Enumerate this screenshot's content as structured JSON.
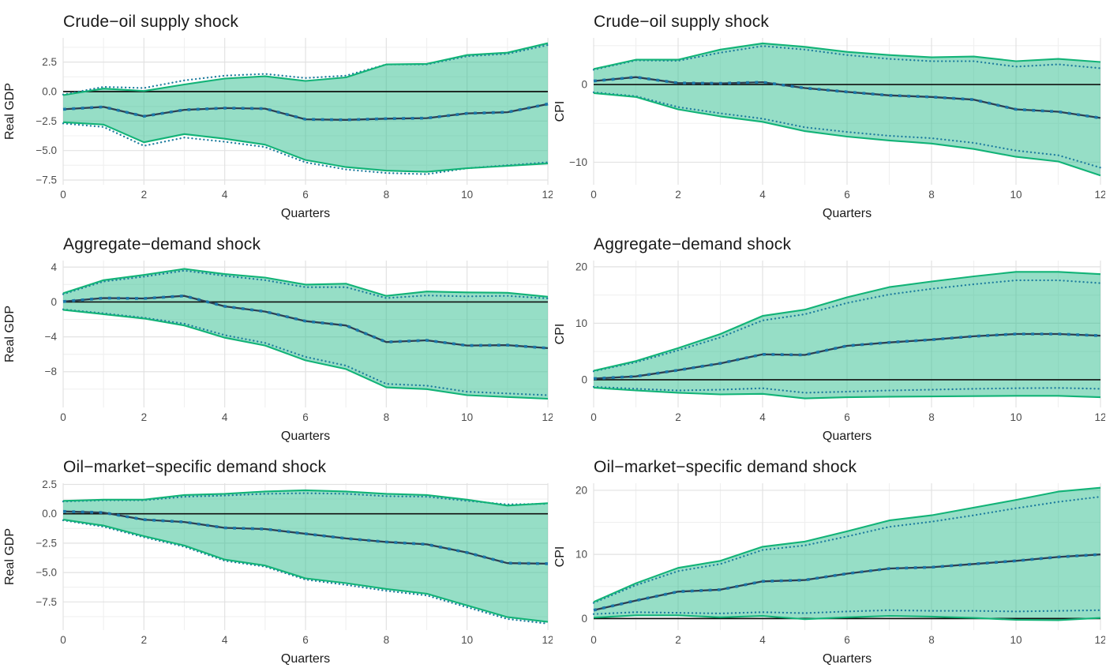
{
  "colors": {
    "band_fill": "#2ebe8e",
    "band_edge": "#12b377",
    "dotted_line": "#1f7d9f",
    "median_line": "#2c3f52",
    "median_marker": "#1878aa",
    "zero_line": "#101010",
    "grid_major": "#e2e2e2",
    "grid_minor": "#f0f0f0",
    "tick_text": "#4d4d4d",
    "label_text": "#1a1a1a"
  },
  "chart_data": [
    {
      "type": "line",
      "title": "Crude−oil supply shock",
      "xlabel": "Quarters",
      "ylabel": "Real GDP",
      "x": [
        0,
        1,
        2,
        3,
        4,
        5,
        6,
        7,
        8,
        9,
        10,
        11,
        12
      ],
      "x_range": [
        0,
        12
      ],
      "xticks": [
        0,
        2,
        4,
        6,
        8,
        10,
        12
      ],
      "xtick_labels": [
        "0",
        "2",
        "4",
        "6",
        "8",
        "10",
        "12"
      ],
      "yticks": [
        2.5,
        0.0,
        -2.5,
        -5.0,
        -7.5
      ],
      "ytick_labels": [
        "2.5",
        "0.0",
        "−2.5",
        "−5.0",
        "−7.5"
      ],
      "ylim": [
        -7.9,
        4.55
      ],
      "zero_line": 0,
      "grid": true,
      "legend": "none",
      "series": [
        {
          "name": "median",
          "style": "dark-dashed-markers",
          "values": [
            -1.5,
            -1.3,
            -2.1,
            -1.55,
            -1.4,
            -1.45,
            -2.35,
            -2.4,
            -2.3,
            -2.25,
            -1.85,
            -1.75,
            -1.05
          ]
        },
        {
          "name": "upper-band",
          "style": "solid-green",
          "values": [
            -0.3,
            0.25,
            0.05,
            0.6,
            1.1,
            1.3,
            0.9,
            1.2,
            2.3,
            2.35,
            3.1,
            3.3,
            4.1
          ]
        },
        {
          "name": "lower-band",
          "style": "solid-green",
          "values": [
            -2.6,
            -2.8,
            -4.3,
            -3.6,
            -4.0,
            -4.5,
            -5.8,
            -6.4,
            -6.7,
            -6.8,
            -6.5,
            -6.3,
            -6.1
          ]
        },
        {
          "name": "upper-dotted",
          "style": "dotted-blue",
          "values": [
            -0.25,
            0.4,
            0.3,
            0.95,
            1.35,
            1.5,
            1.15,
            1.35,
            2.3,
            2.3,
            3.0,
            3.2,
            3.95
          ]
        },
        {
          "name": "lower-dotted",
          "style": "dotted-blue",
          "values": [
            -2.7,
            -3.0,
            -4.6,
            -3.9,
            -4.25,
            -4.7,
            -6.0,
            -6.6,
            -6.9,
            -7.0,
            -6.5,
            -6.25,
            -6.0
          ]
        }
      ]
    },
    {
      "type": "line",
      "title": "Crude−oil supply shock",
      "xlabel": "Quarters",
      "ylabel": "CPI",
      "x": [
        0,
        1,
        2,
        3,
        4,
        5,
        6,
        7,
        8,
        9,
        10,
        11,
        12
      ],
      "x_range": [
        0,
        12
      ],
      "xticks": [
        0,
        2,
        4,
        6,
        8,
        10,
        12
      ],
      "xtick_labels": [
        "0",
        "2",
        "4",
        "6",
        "8",
        "10",
        "12"
      ],
      "yticks": [
        0,
        -10
      ],
      "ytick_labels": [
        "0",
        "−10"
      ],
      "ylim": [
        -12.9,
        6.0
      ],
      "zero_line": 0,
      "grid": true,
      "legend": "none",
      "series": [
        {
          "name": "median",
          "style": "dark-dashed-markers",
          "values": [
            0.45,
            0.95,
            0.2,
            0.15,
            0.3,
            -0.45,
            -0.95,
            -1.4,
            -1.6,
            -1.95,
            -3.2,
            -3.5,
            -4.3
          ]
        },
        {
          "name": "upper-band",
          "style": "solid-green",
          "values": [
            2.0,
            3.2,
            3.2,
            4.5,
            5.3,
            4.85,
            4.2,
            3.8,
            3.5,
            3.6,
            3.0,
            3.3,
            2.9
          ]
        },
        {
          "name": "lower-band",
          "style": "solid-green",
          "values": [
            -1.1,
            -1.6,
            -3.2,
            -4.1,
            -4.8,
            -6.0,
            -6.7,
            -7.2,
            -7.6,
            -8.3,
            -9.3,
            -9.9,
            -11.7
          ]
        },
        {
          "name": "upper-dotted",
          "style": "dotted-blue",
          "values": [
            1.9,
            3.1,
            3.05,
            4.1,
            4.95,
            4.5,
            3.8,
            3.3,
            3.0,
            3.0,
            2.3,
            2.6,
            2.1
          ]
        },
        {
          "name": "lower-dotted",
          "style": "dotted-blue",
          "values": [
            -1.0,
            -1.5,
            -2.9,
            -3.7,
            -4.4,
            -5.5,
            -6.1,
            -6.6,
            -6.9,
            -7.5,
            -8.5,
            -9.1,
            -10.7
          ]
        }
      ]
    },
    {
      "type": "line",
      "title": "Aggregate−demand shock",
      "xlabel": "Quarters",
      "ylabel": "Real GDP",
      "x": [
        0,
        1,
        2,
        3,
        4,
        5,
        6,
        7,
        8,
        9,
        10,
        11,
        12
      ],
      "x_range": [
        0,
        12
      ],
      "xticks": [
        0,
        2,
        4,
        6,
        8,
        10,
        12
      ],
      "xtick_labels": [
        "0",
        "2",
        "4",
        "6",
        "8",
        "10",
        "12"
      ],
      "yticks": [
        4,
        0,
        -4,
        -8
      ],
      "ytick_labels": [
        "4",
        "0",
        "−4",
        "−8"
      ],
      "ylim": [
        -12.1,
        4.75
      ],
      "zero_line": 0,
      "grid": true,
      "legend": "none",
      "series": [
        {
          "name": "median",
          "style": "dark-dashed-markers",
          "values": [
            0.05,
            0.45,
            0.4,
            0.7,
            -0.5,
            -1.1,
            -2.2,
            -2.7,
            -4.6,
            -4.4,
            -5.0,
            -4.95,
            -5.3
          ]
        },
        {
          "name": "upper-band",
          "style": "solid-green",
          "values": [
            1.0,
            2.5,
            3.1,
            3.8,
            3.2,
            2.8,
            2.0,
            2.1,
            0.7,
            1.2,
            1.1,
            1.05,
            0.6
          ]
        },
        {
          "name": "lower-band",
          "style": "solid-green",
          "values": [
            -0.9,
            -1.4,
            -1.9,
            -2.7,
            -4.1,
            -5.0,
            -6.7,
            -7.7,
            -9.8,
            -10.0,
            -10.7,
            -10.9,
            -11.1
          ]
        },
        {
          "name": "upper-dotted",
          "style": "dotted-blue",
          "values": [
            0.9,
            2.35,
            2.9,
            3.6,
            3.0,
            2.5,
            1.7,
            1.7,
            0.45,
            0.75,
            0.65,
            0.7,
            0.4
          ]
        },
        {
          "name": "lower-dotted",
          "style": "dotted-blue",
          "values": [
            -0.85,
            -1.3,
            -1.8,
            -2.5,
            -3.8,
            -4.7,
            -6.3,
            -7.3,
            -9.4,
            -9.6,
            -10.3,
            -10.5,
            -10.7
          ]
        }
      ]
    },
    {
      "type": "line",
      "title": "Aggregate−demand shock",
      "xlabel": "Quarters",
      "ylabel": "CPI",
      "x": [
        0,
        1,
        2,
        3,
        4,
        5,
        6,
        7,
        8,
        9,
        10,
        11,
        12
      ],
      "x_range": [
        0,
        12
      ],
      "xticks": [
        0,
        2,
        4,
        6,
        8,
        10,
        12
      ],
      "xtick_labels": [
        "0",
        "2",
        "4",
        "6",
        "8",
        "10",
        "12"
      ],
      "yticks": [
        20,
        10,
        0
      ],
      "ytick_labels": [
        "20",
        "10",
        "0"
      ],
      "ylim": [
        -4.9,
        21.1
      ],
      "zero_line": 0,
      "grid": true,
      "legend": "none",
      "series": [
        {
          "name": "median",
          "style": "dark-dashed-markers",
          "values": [
            0.2,
            0.6,
            1.7,
            2.9,
            4.5,
            4.4,
            6.0,
            6.6,
            7.1,
            7.7,
            8.1,
            8.1,
            7.8
          ]
        },
        {
          "name": "upper-band",
          "style": "solid-green",
          "values": [
            1.6,
            3.3,
            5.6,
            8.1,
            11.3,
            12.4,
            14.6,
            16.4,
            17.4,
            18.3,
            19.1,
            19.1,
            18.7
          ]
        },
        {
          "name": "lower-band",
          "style": "solid-green",
          "values": [
            -1.4,
            -1.9,
            -2.3,
            -2.6,
            -2.5,
            -3.3,
            -3.1,
            -3.0,
            -2.95,
            -2.9,
            -2.85,
            -2.85,
            -3.1
          ]
        },
        {
          "name": "upper-dotted",
          "style": "dotted-blue",
          "values": [
            1.5,
            3.1,
            5.2,
            7.5,
            10.5,
            11.6,
            13.6,
            15.1,
            16.1,
            16.9,
            17.6,
            17.6,
            17.1
          ]
        },
        {
          "name": "lower-dotted",
          "style": "dotted-blue",
          "values": [
            -1.25,
            -1.6,
            -1.9,
            -1.75,
            -1.5,
            -2.3,
            -2.1,
            -1.9,
            -1.75,
            -1.6,
            -1.5,
            -1.45,
            -1.6
          ]
        }
      ]
    },
    {
      "type": "line",
      "title": "Oil−market−specific demand shock",
      "xlabel": "Quarters",
      "ylabel": "Real GDP",
      "x": [
        0,
        1,
        2,
        3,
        4,
        5,
        6,
        7,
        8,
        9,
        10,
        11,
        12
      ],
      "x_range": [
        0,
        12
      ],
      "xticks": [
        0,
        2,
        4,
        6,
        8,
        10,
        12
      ],
      "xtick_labels": [
        "0",
        "2",
        "4",
        "6",
        "8",
        "10",
        "12"
      ],
      "yticks": [
        2.5,
        0.0,
        -2.5,
        -5.0,
        -7.5
      ],
      "ytick_labels": [
        "2.5",
        "0.0",
        "−2.5",
        "−5.0",
        "−7.5"
      ],
      "ylim": [
        -9.9,
        2.6
      ],
      "zero_line": 0,
      "grid": true,
      "legend": "none",
      "series": [
        {
          "name": "median",
          "style": "dark-dashed-markers",
          "values": [
            0.2,
            0.1,
            -0.5,
            -0.7,
            -1.2,
            -1.3,
            -1.7,
            -2.1,
            -2.4,
            -2.6,
            -3.3,
            -4.2,
            -4.25
          ]
        },
        {
          "name": "upper-band",
          "style": "solid-green",
          "values": [
            1.1,
            1.2,
            1.2,
            1.6,
            1.7,
            1.9,
            2.0,
            1.9,
            1.7,
            1.6,
            1.2,
            0.7,
            0.9
          ]
        },
        {
          "name": "lower-band",
          "style": "solid-green",
          "values": [
            -0.5,
            -1.0,
            -1.9,
            -2.7,
            -3.9,
            -4.4,
            -5.5,
            -5.9,
            -6.4,
            -6.8,
            -7.8,
            -8.8,
            -9.2
          ]
        },
        {
          "name": "upper-dotted",
          "style": "dotted-blue",
          "values": [
            1.05,
            1.15,
            1.15,
            1.45,
            1.55,
            1.7,
            1.75,
            1.7,
            1.5,
            1.45,
            1.1,
            0.8,
            0.85
          ]
        },
        {
          "name": "lower-dotted",
          "style": "dotted-blue",
          "values": [
            -0.55,
            -1.1,
            -2.0,
            -2.8,
            -4.0,
            -4.5,
            -5.6,
            -6.05,
            -6.55,
            -6.95,
            -7.95,
            -8.95,
            -9.35
          ]
        }
      ]
    },
    {
      "type": "line",
      "title": "Oil−market−specific demand shock",
      "xlabel": "Quarters",
      "ylabel": "CPI",
      "x": [
        0,
        1,
        2,
        3,
        4,
        5,
        6,
        7,
        8,
        9,
        10,
        11,
        12
      ],
      "x_range": [
        0,
        12
      ],
      "xticks": [
        0,
        2,
        4,
        6,
        8,
        10,
        12
      ],
      "xtick_labels": [
        "0",
        "2",
        "4",
        "6",
        "8",
        "10",
        "12"
      ],
      "yticks": [
        20,
        10,
        0
      ],
      "ytick_labels": [
        "20",
        "10",
        "0"
      ],
      "ylim": [
        -1.8,
        21.1
      ],
      "zero_line": 0,
      "grid": true,
      "legend": "none",
      "series": [
        {
          "name": "median",
          "style": "dark-dashed-markers",
          "values": [
            1.3,
            2.8,
            4.2,
            4.5,
            5.8,
            6.0,
            7.0,
            7.8,
            8.0,
            8.5,
            9.0,
            9.6,
            10.0
          ]
        },
        {
          "name": "upper-band",
          "style": "solid-green",
          "values": [
            2.6,
            5.5,
            7.9,
            9.0,
            11.2,
            12.0,
            13.6,
            15.3,
            16.1,
            17.3,
            18.5,
            19.8,
            20.4
          ]
        },
        {
          "name": "lower-band",
          "style": "solid-green",
          "values": [
            0.15,
            0.5,
            0.5,
            0.2,
            0.4,
            -0.1,
            0.2,
            0.4,
            0.3,
            0.1,
            -0.2,
            -0.25,
            0.1
          ]
        },
        {
          "name": "upper-dotted",
          "style": "dotted-blue",
          "values": [
            2.45,
            5.2,
            7.4,
            8.5,
            10.7,
            11.4,
            12.8,
            14.3,
            15.1,
            16.1,
            17.2,
            18.2,
            19.0
          ]
        },
        {
          "name": "lower-dotted",
          "style": "dotted-blue",
          "values": [
            0.7,
            1.0,
            0.9,
            0.8,
            1.0,
            0.85,
            1.1,
            1.3,
            1.2,
            1.2,
            1.1,
            1.2,
            1.3
          ]
        }
      ]
    }
  ]
}
